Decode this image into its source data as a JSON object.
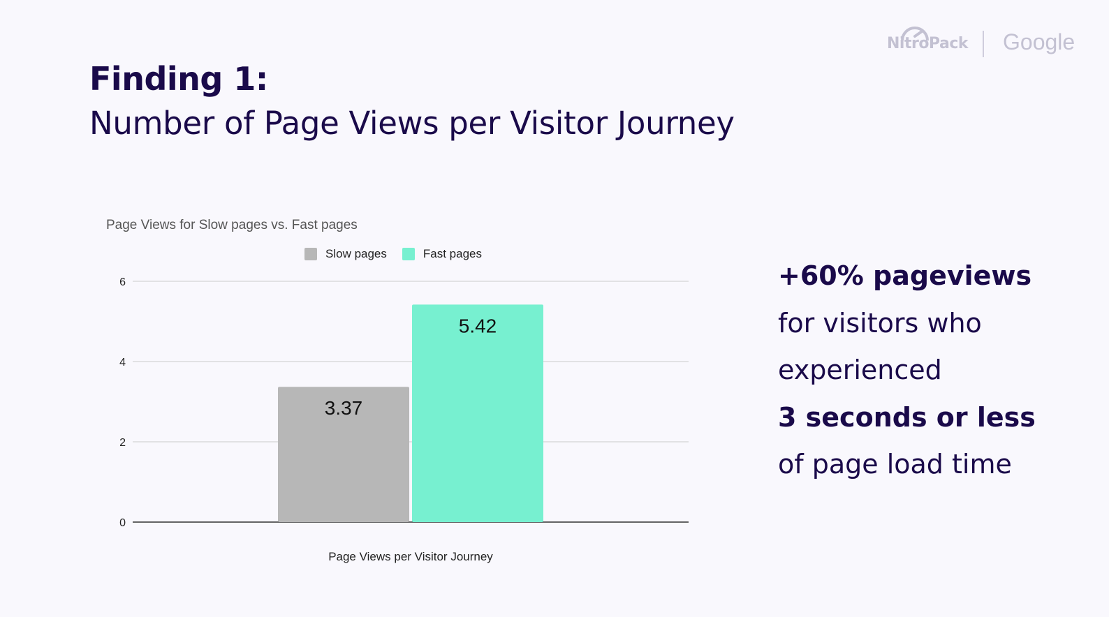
{
  "header": {
    "finding": "Finding 1:",
    "title": "Number of Page Views per Visitor Journey"
  },
  "logos": {
    "left": "NitroPack",
    "right": "Google"
  },
  "chart_data": {
    "type": "bar",
    "title": "Page Views for Slow pages vs. Fast pages",
    "categories": [
      "Page Views per Visitor Journey"
    ],
    "xlabel": "Page Views per Visitor Journey",
    "ylabel": "",
    "ylim": [
      0,
      6
    ],
    "yticks": [
      0,
      2,
      4,
      6
    ],
    "grid": true,
    "legend_position": "top",
    "series": [
      {
        "name": "Slow pages",
        "values": [
          3.37
        ],
        "color": "#b7b7b7",
        "label": "3.37"
      },
      {
        "name": "Fast pages",
        "values": [
          5.42
        ],
        "color": "#77f0d0",
        "label": "5.42"
      }
    ]
  },
  "callout": {
    "lines": [
      {
        "text": "+60% pageviews",
        "bold": true
      },
      {
        "text": "for visitors who",
        "bold": false
      },
      {
        "text": "experienced",
        "bold": false
      },
      {
        "text": "3 seconds or less",
        "bold": true
      },
      {
        "text": "of page load time",
        "bold": false
      }
    ]
  }
}
